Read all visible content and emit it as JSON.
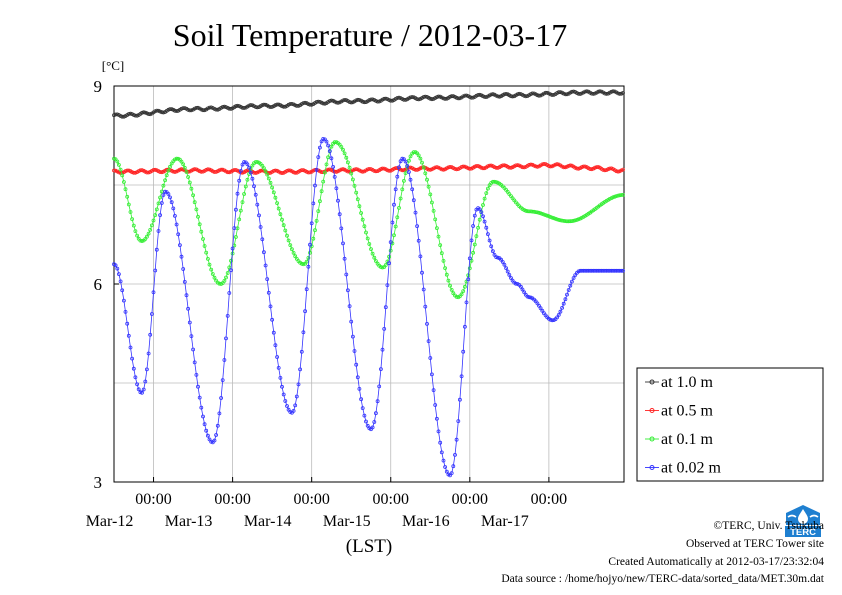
{
  "chart_data": {
    "type": "line",
    "title": "Soil Temperature / 2012-03-17",
    "ylabel": "[°C]",
    "xlabel": "(LST)",
    "ylim": [
      3,
      9
    ],
    "yticks": [
      3,
      6,
      9
    ],
    "xlim_days": [
      -0.5,
      5.95
    ],
    "xtick_time": "00:00",
    "xticks": [
      "Mar-12",
      "Mar-13",
      "Mar-14",
      "Mar-15",
      "Mar-16",
      "Mar-17"
    ],
    "grid": true,
    "legend_position": "lower-right outside",
    "series": [
      {
        "name": "at 1.0 m",
        "color": "#333333",
        "x": [
          -0.5,
          0.5,
          1.5,
          2.5,
          3.5,
          4.5,
          5.5,
          5.95
        ],
        "y": [
          8.55,
          8.65,
          8.7,
          8.77,
          8.82,
          8.86,
          8.9,
          8.9
        ]
      },
      {
        "name": "at 0.5 m",
        "color": "#ff2222",
        "x": [
          -0.5,
          0.5,
          1.5,
          2.5,
          3.5,
          4.5,
          5.0,
          5.5,
          5.95
        ],
        "y": [
          7.7,
          7.72,
          7.7,
          7.72,
          7.75,
          7.78,
          7.8,
          7.76,
          7.72
        ]
      },
      {
        "name": "at 0.1 m",
        "color": "#33ee33",
        "x": [
          -0.5,
          -0.15,
          0.3,
          0.85,
          1.3,
          1.9,
          2.3,
          2.9,
          3.3,
          3.85,
          4.3,
          4.75,
          5.25,
          5.95
        ],
        "y": [
          7.9,
          6.65,
          7.9,
          6.0,
          7.85,
          6.3,
          8.15,
          6.25,
          8.0,
          5.8,
          7.55,
          7.1,
          6.95,
          7.35
        ]
      },
      {
        "name": "at 0.02 m",
        "color": "#3333ff",
        "x": [
          -0.5,
          -0.15,
          0.15,
          0.75,
          1.15,
          1.75,
          2.15,
          2.75,
          3.15,
          3.75,
          4.1,
          4.35,
          4.6,
          4.75,
          5.05,
          5.4,
          5.95
        ],
        "y": [
          6.3,
          4.35,
          7.4,
          3.6,
          7.85,
          4.05,
          8.2,
          3.8,
          7.9,
          3.1,
          7.15,
          6.4,
          6.0,
          5.8,
          5.45,
          6.2,
          6.2
        ]
      }
    ]
  },
  "footer": {
    "copyright": "©TERC, Univ. Tsukuba",
    "observed": "Observed at TERC Tower site",
    "created": "Created Automatically at 2012-03-17/23:32:04",
    "source": "Data source : /home/hojyo/new/TERC-data/sorted_data/MET.30m.dat"
  },
  "logo_text": "TERC"
}
